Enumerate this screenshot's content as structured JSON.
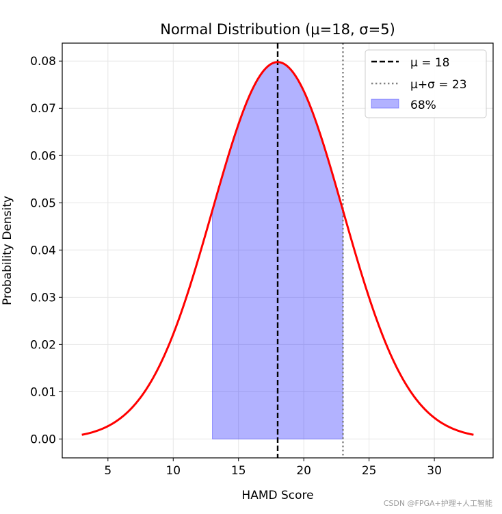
{
  "chart_data": {
    "type": "line",
    "title": "Normal Distribution (μ=18, σ=5)",
    "xlabel": "HAMD Score",
    "ylabel": "Probability Density",
    "xlim": [
      1.5,
      34.5
    ],
    "ylim": [
      -0.004,
      0.0838
    ],
    "x_ticks": [
      5,
      10,
      15,
      20,
      25,
      30
    ],
    "y_ticks": [
      0.0,
      0.01,
      0.02,
      0.03,
      0.04,
      0.05,
      0.06,
      0.07,
      0.08
    ],
    "y_tick_labels": [
      "0.00",
      "0.01",
      "0.02",
      "0.03",
      "0.04",
      "0.05",
      "0.06",
      "0.07",
      "0.08"
    ],
    "grid": true,
    "legend_position": "top-right",
    "series": [
      {
        "kind": "curve",
        "mu": 18,
        "sigma": 5,
        "x": [
          3,
          4,
          5,
          6,
          7,
          8,
          9,
          10,
          11,
          12,
          13,
          14,
          15,
          16,
          17,
          18,
          19,
          20,
          21,
          22,
          23,
          24,
          25,
          26,
          27,
          28,
          29,
          30,
          31,
          32,
          33
        ],
        "y": [
          0.00089,
          0.00158,
          0.00272,
          0.00448,
          0.00711,
          0.0108,
          0.01579,
          0.02218,
          0.02995,
          0.03884,
          0.04839,
          0.05794,
          0.06664,
          0.07365,
          0.07821,
          0.07979,
          0.07821,
          0.07365,
          0.06664,
          0.05794,
          0.04839,
          0.03884,
          0.02995,
          0.02218,
          0.01579,
          0.0108,
          0.00711,
          0.00448,
          0.00272,
          0.00158,
          0.00089
        ],
        "color": "#ff0000"
      },
      {
        "kind": "vline",
        "name": "μ = 18",
        "x": 18,
        "style": "dashed",
        "color": "#000000"
      },
      {
        "kind": "vline",
        "name": "μ+σ = 23",
        "x": 23,
        "style": "dotted",
        "color": "#808080"
      },
      {
        "kind": "fill",
        "name": "68%",
        "x_from": 13,
        "x_to": 23,
        "color": "#0000ff",
        "alpha": 0.3
      }
    ]
  },
  "watermark": "CSDN @FPGA+护理+人工智能"
}
